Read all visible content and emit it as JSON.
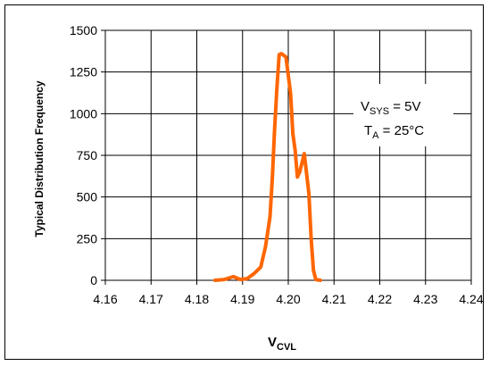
{
  "chart_data": {
    "type": "line",
    "xlabel": {
      "main": "V",
      "sub": "CVL"
    },
    "ylabel": "Typical Distribution Frequency",
    "xlim": [
      4.16,
      4.24
    ],
    "ylim": [
      0,
      1500
    ],
    "x_ticks": [
      4.16,
      4.17,
      4.18,
      4.19,
      4.2,
      4.21,
      4.22,
      4.23,
      4.24
    ],
    "x_tick_labels": [
      "4.16",
      "4.17",
      "4.18",
      "4.19",
      "4.20",
      "4.21",
      "4.22",
      "4.23",
      "4.24"
    ],
    "y_ticks": [
      0,
      250,
      500,
      750,
      1000,
      1250,
      1500
    ],
    "y_tick_labels": [
      "0",
      "250",
      "500",
      "750",
      "1000",
      "1250",
      "1500"
    ],
    "grid": true,
    "legend": "none",
    "series": [
      {
        "color": "#ff6600",
        "x": [
          4.184,
          4.186,
          4.188,
          4.1895,
          4.191,
          4.1925,
          4.194,
          4.195,
          4.196,
          4.1965,
          4.197,
          4.1975,
          4.198,
          4.1985,
          4.1995,
          4.2005,
          4.201,
          4.2015,
          4.202,
          4.2025,
          4.2035,
          4.2045,
          4.205,
          4.2055,
          4.206,
          4.207
        ],
        "values": [
          0,
          5,
          22,
          5,
          10,
          40,
          80,
          200,
          380,
          610,
          900,
          1150,
          1355,
          1360,
          1340,
          1120,
          880,
          780,
          620,
          650,
          760,
          520,
          250,
          60,
          5,
          0
        ]
      }
    ],
    "annotations": [
      {
        "main": "V",
        "sub": "SYS",
        "rest": " = 5V"
      },
      {
        "main": "T",
        "sub": "A",
        "rest": " = 25°C"
      }
    ]
  }
}
